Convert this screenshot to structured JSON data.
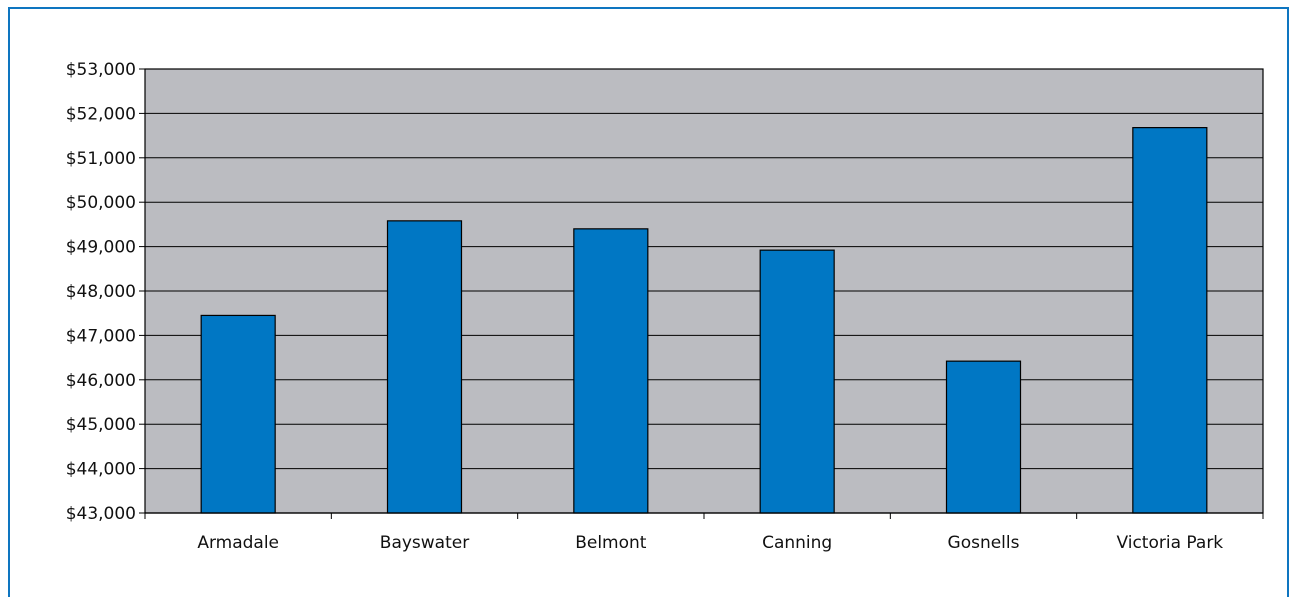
{
  "chart_data": {
    "type": "bar",
    "title": "",
    "xlabel": "",
    "ylabel": "",
    "categories": [
      "Armadale",
      "Bayswater",
      "Belmont",
      "Canning",
      "Gosnells",
      "Victoria Park"
    ],
    "values": [
      47450,
      49580,
      49400,
      48920,
      46420,
      51680
    ],
    "ylim": [
      43000,
      53000
    ],
    "yticks": [
      43000,
      44000,
      45000,
      46000,
      47000,
      48000,
      49000,
      50000,
      51000,
      52000,
      53000
    ],
    "ytick_labels": [
      "$43,000",
      "$44,000",
      "$45,000",
      "$46,000",
      "$47,000",
      "$48,000",
      "$49,000",
      "$50,000",
      "$51,000",
      "$52,000",
      "$53,000"
    ],
    "grid": true,
    "legend": "none",
    "colors": {
      "bar": "#0077c4",
      "plot_background": "#bbbcc1",
      "frame": "#0e75c0"
    }
  }
}
